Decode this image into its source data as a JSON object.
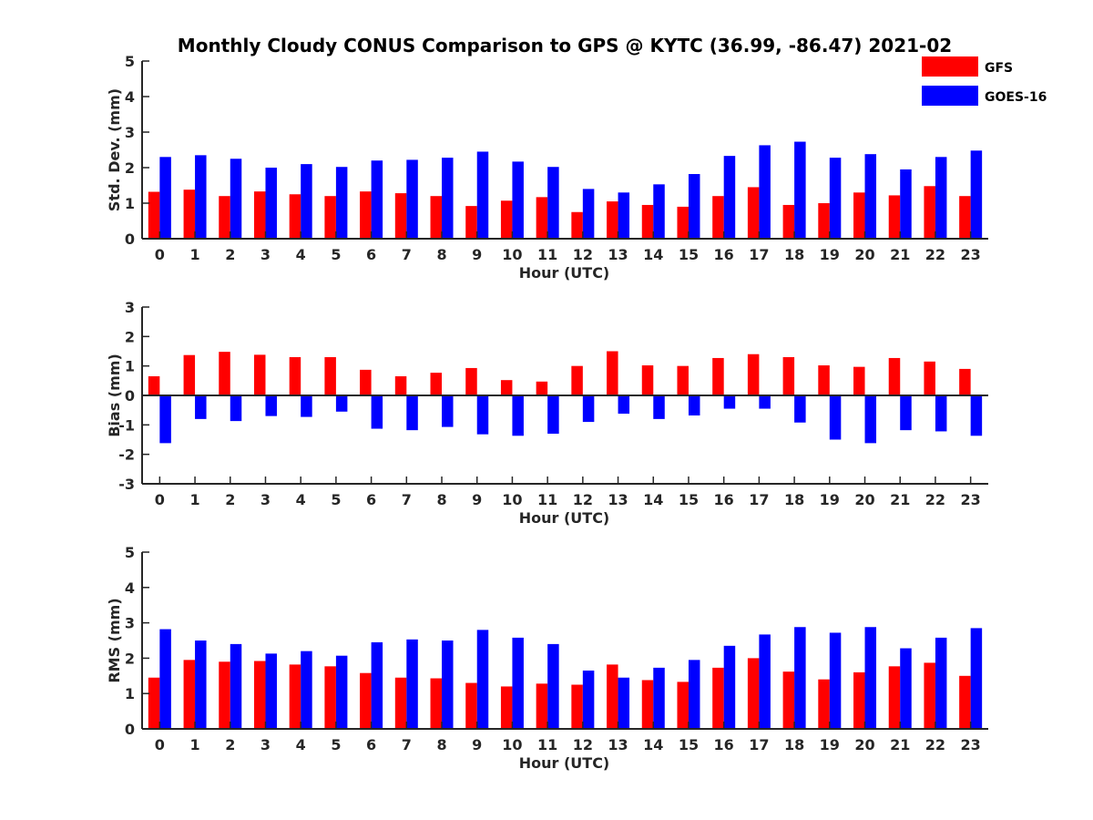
{
  "title": "Monthly Cloudy CONUS Comparison to GPS @ KYTC (36.99, -86.47) 2021-02",
  "legend": {
    "placement": "top-right",
    "entries": [
      {
        "name": "GFS",
        "color": "#ff0000"
      },
      {
        "name": "GOES-16",
        "color": "#0000ff"
      }
    ]
  },
  "chart_data": [
    {
      "type": "bar",
      "title": "",
      "xlabel": "Hour (UTC)",
      "ylabel": "Std. Dev. (mm)",
      "categories": [
        "0",
        "1",
        "2",
        "3",
        "4",
        "5",
        "6",
        "7",
        "8",
        "9",
        "10",
        "11",
        "12",
        "13",
        "14",
        "15",
        "16",
        "17",
        "18",
        "19",
        "20",
        "21",
        "22",
        "23"
      ],
      "ylim": [
        0,
        5
      ],
      "yticks": [
        0,
        1,
        2,
        3,
        4,
        5
      ],
      "series": [
        {
          "name": "GFS",
          "color": "#ff0000",
          "values": [
            1.32,
            1.38,
            1.2,
            1.33,
            1.25,
            1.2,
            1.33,
            1.28,
            1.2,
            0.92,
            1.07,
            1.17,
            0.75,
            1.05,
            0.95,
            0.9,
            1.2,
            1.45,
            0.95,
            1.0,
            1.3,
            1.22,
            1.48,
            1.2
          ]
        },
        {
          "name": "GOES-16",
          "color": "#0000ff",
          "values": [
            2.3,
            2.35,
            2.25,
            2.0,
            2.1,
            2.02,
            2.2,
            2.22,
            2.28,
            2.45,
            2.17,
            2.02,
            1.4,
            1.3,
            1.53,
            1.82,
            2.33,
            2.63,
            2.73,
            2.28,
            2.38,
            1.95,
            2.3,
            2.48
          ]
        }
      ]
    },
    {
      "type": "bar",
      "title": "",
      "xlabel": "Hour (UTC)",
      "ylabel": "Bias (mm)",
      "categories": [
        "0",
        "1",
        "2",
        "3",
        "4",
        "5",
        "6",
        "7",
        "8",
        "9",
        "10",
        "11",
        "12",
        "13",
        "14",
        "15",
        "16",
        "17",
        "18",
        "19",
        "20",
        "21",
        "22",
        "23"
      ],
      "ylim": [
        -3,
        3
      ],
      "yticks": [
        -3,
        -2,
        -1,
        0,
        1,
        2,
        3
      ],
      "zero_line": true,
      "series": [
        {
          "name": "GFS",
          "color": "#ff0000",
          "values": [
            0.65,
            1.37,
            1.48,
            1.38,
            1.3,
            1.3,
            0.87,
            0.65,
            0.77,
            0.93,
            0.52,
            0.47,
            1.0,
            1.5,
            1.02,
            1.0,
            1.27,
            1.4,
            1.3,
            1.02,
            0.97,
            1.27,
            1.15,
            0.9
          ]
        },
        {
          "name": "GOES-16",
          "color": "#0000ff",
          "values": [
            -1.62,
            -0.8,
            -0.87,
            -0.7,
            -0.73,
            -0.55,
            -1.13,
            -1.18,
            -1.07,
            -1.32,
            -1.37,
            -1.3,
            -0.9,
            -0.62,
            -0.8,
            -0.68,
            -0.45,
            -0.45,
            -0.92,
            -1.5,
            -1.62,
            -1.18,
            -1.22,
            -1.37
          ]
        }
      ]
    },
    {
      "type": "bar",
      "title": "",
      "xlabel": "Hour (UTC)",
      "ylabel": "RMS (mm)",
      "categories": [
        "0",
        "1",
        "2",
        "3",
        "4",
        "5",
        "6",
        "7",
        "8",
        "9",
        "10",
        "11",
        "12",
        "13",
        "14",
        "15",
        "16",
        "17",
        "18",
        "19",
        "20",
        "21",
        "22",
        "23"
      ],
      "ylim": [
        0,
        5
      ],
      "yticks": [
        0,
        1,
        2,
        3,
        4,
        5
      ],
      "series": [
        {
          "name": "GFS",
          "color": "#ff0000",
          "values": [
            1.45,
            1.95,
            1.9,
            1.92,
            1.82,
            1.77,
            1.58,
            1.45,
            1.43,
            1.3,
            1.2,
            1.28,
            1.25,
            1.82,
            1.38,
            1.33,
            1.73,
            2.0,
            1.62,
            1.4,
            1.6,
            1.77,
            1.87,
            1.5
          ]
        },
        {
          "name": "GOES-16",
          "color": "#0000ff",
          "values": [
            2.82,
            2.5,
            2.4,
            2.13,
            2.2,
            2.07,
            2.45,
            2.53,
            2.5,
            2.8,
            2.58,
            2.4,
            1.65,
            1.45,
            1.73,
            1.95,
            2.35,
            2.67,
            2.88,
            2.72,
            2.88,
            2.28,
            2.58,
            2.85
          ]
        }
      ]
    }
  ]
}
